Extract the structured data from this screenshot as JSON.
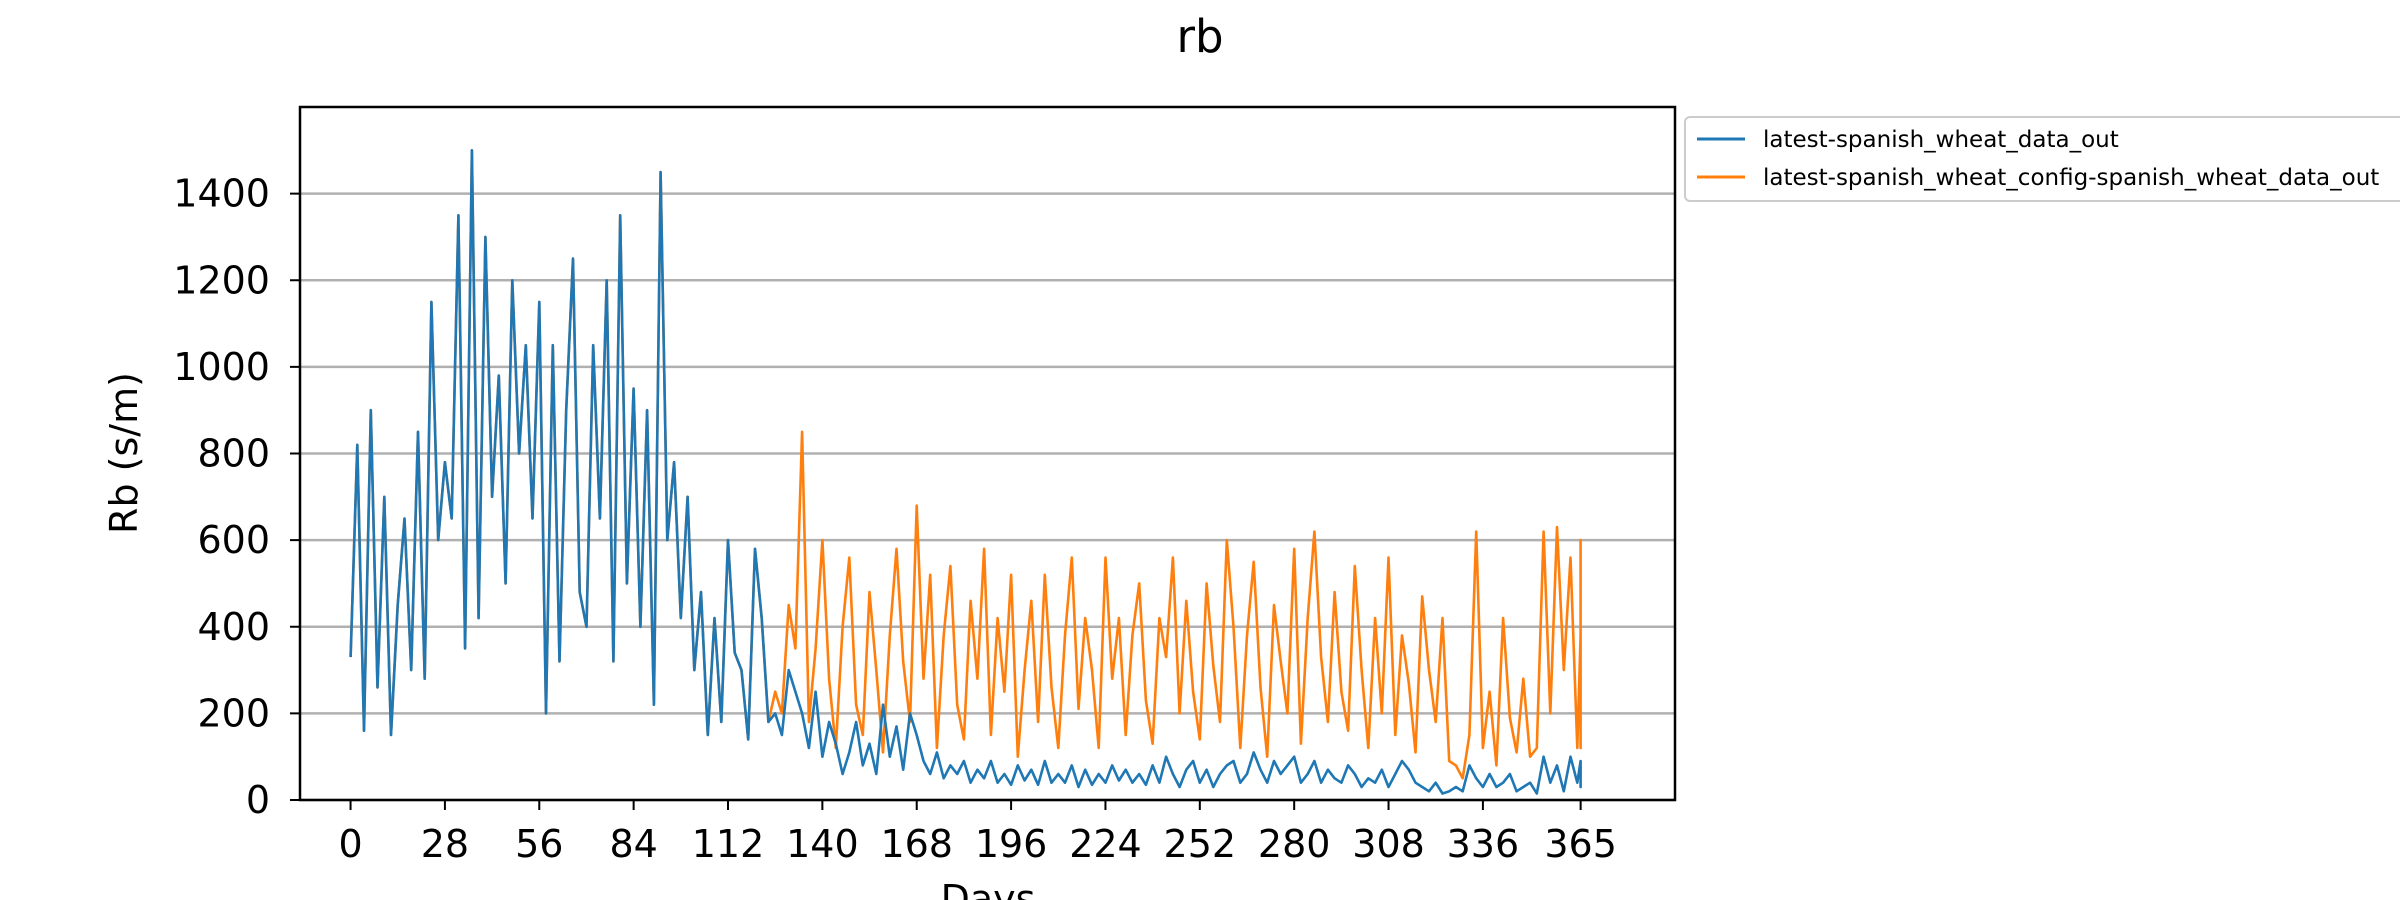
{
  "chart_data": {
    "type": "line",
    "title": "rb",
    "xlabel": "Days",
    "ylabel": "Rb (s/m)",
    "xlim": [
      -15,
      393
    ],
    "ylim": [
      0,
      1600
    ],
    "x_ticks": [
      0,
      28,
      56,
      84,
      112,
      140,
      168,
      196,
      224,
      252,
      280,
      308,
      336,
      365
    ],
    "y_ticks": [
      0,
      200,
      400,
      600,
      800,
      1000,
      1200,
      1400
    ],
    "grid": "horizontal",
    "legend_position": "outside-top-right",
    "colors": {
      "series1": "#1f77b4",
      "series2": "#ff7f0e",
      "grid": "#b0b0b0"
    },
    "x_start": 0,
    "x_step": 2,
    "series": [
      {
        "name": "latest-spanish_wheat_data_out",
        "color": "#1f77b4",
        "values": [
          330,
          820,
          160,
          900,
          260,
          700,
          150,
          450,
          650,
          300,
          850,
          280,
          1150,
          600,
          780,
          650,
          1350,
          350,
          1500,
          420,
          1300,
          700,
          980,
          500,
          1200,
          800,
          1050,
          650,
          1150,
          200,
          1050,
          320,
          900,
          1250,
          480,
          400,
          1050,
          650,
          1200,
          320,
          1350,
          500,
          950,
          400,
          900,
          220,
          1450,
          600,
          780,
          420,
          700,
          300,
          480,
          150,
          420,
          180,
          600,
          340,
          300,
          140,
          580,
          420,
          180,
          200,
          150,
          300,
          250,
          200,
          120,
          250,
          100,
          180,
          130,
          60,
          110,
          180,
          80,
          130,
          60,
          220,
          100,
          170,
          70,
          200,
          150,
          90,
          60,
          110,
          50,
          80,
          60,
          90,
          40,
          70,
          50,
          90,
          40,
          60,
          35,
          80,
          45,
          70,
          35,
          90,
          40,
          60,
          40,
          80,
          30,
          70,
          35,
          60,
          40,
          80,
          45,
          70,
          40,
          60,
          35,
          80,
          40,
          100,
          60,
          30,
          70,
          90,
          40,
          70,
          30,
          60,
          80,
          90,
          40,
          60,
          110,
          70,
          40,
          90,
          60,
          80,
          100,
          40,
          60,
          90,
          40,
          70,
          50,
          40,
          80,
          60,
          30,
          50,
          40,
          70,
          30,
          60,
          90,
          70,
          40,
          30,
          20,
          40,
          15,
          20,
          30,
          20,
          80,
          50,
          30,
          60,
          30,
          40,
          60,
          20,
          30,
          40,
          15,
          100,
          40,
          80,
          20,
          100,
          40,
          90,
          30,
          60
        ]
      },
      {
        "name": "latest-spanish_wheat_config-spanish_wheat_data_out",
        "color": "#ff7f0e",
        "values": [
          330,
          820,
          160,
          900,
          260,
          700,
          150,
          450,
          650,
          300,
          850,
          280,
          1150,
          600,
          780,
          650,
          1350,
          350,
          1500,
          420,
          1300,
          700,
          980,
          500,
          1200,
          800,
          1050,
          650,
          1150,
          200,
          1050,
          320,
          900,
          1250,
          480,
          400,
          1050,
          650,
          1200,
          320,
          1350,
          500,
          950,
          400,
          900,
          220,
          1450,
          600,
          780,
          420,
          700,
          300,
          480,
          150,
          420,
          180,
          600,
          340,
          300,
          140,
          580,
          420,
          180,
          250,
          200,
          450,
          350,
          850,
          180,
          350,
          600,
          280,
          120,
          400,
          560,
          220,
          150,
          480,
          300,
          110,
          380,
          580,
          320,
          180,
          680,
          280,
          520,
          120,
          380,
          540,
          220,
          140,
          460,
          280,
          580,
          150,
          420,
          250,
          520,
          100,
          300,
          460,
          180,
          520,
          260,
          120,
          380,
          560,
          210,
          420,
          300,
          120,
          560,
          280,
          420,
          150,
          380,
          500,
          230,
          130,
          420,
          330,
          560,
          200,
          460,
          250,
          140,
          500,
          310,
          180,
          600,
          400,
          120,
          380,
          550,
          260,
          100,
          450,
          320,
          200,
          580,
          130,
          420,
          620,
          330,
          180,
          480,
          250,
          160,
          540,
          300,
          120,
          420,
          200,
          560,
          150,
          380,
          270,
          110,
          470,
          300,
          180,
          420,
          90,
          80,
          50,
          150,
          620,
          120,
          250,
          80,
          420,
          190,
          110,
          280,
          100,
          120,
          620,
          200,
          630,
          300,
          560,
          120,
          380,
          180,
          350,
          600,
          120,
          400,
          340
        ]
      }
    ]
  }
}
